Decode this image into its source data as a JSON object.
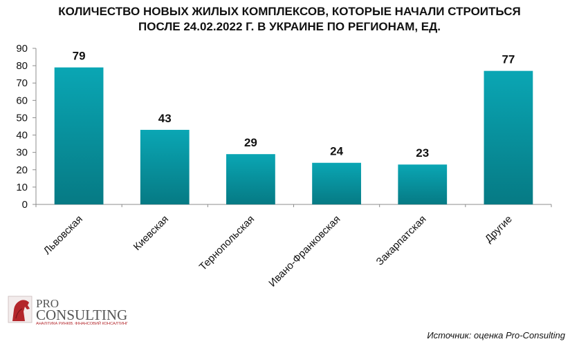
{
  "chart_data": {
    "type": "bar",
    "title_lines": [
      "КОЛИЧЕСТВО НОВЫХ ЖИЛЫХ КОМПЛЕКСОВ, КОТОРЫЕ НАЧАЛИ СТРОИТЬСЯ",
      "ПОСЛЕ 24.02.2022 Г. В УКРАИНЕ ПО РЕГИОНАМ, ЕД."
    ],
    "categories": [
      "Львовская",
      "Киевская",
      "Тернопольская",
      "Ивано-Франковская",
      "Закарпатская",
      "Другие"
    ],
    "values": [
      79,
      43,
      29,
      24,
      23,
      77
    ],
    "ylim": [
      0,
      90
    ],
    "yticks": [
      0,
      10,
      20,
      30,
      40,
      50,
      60,
      70,
      80,
      90
    ],
    "grid": false,
    "data_labels": true,
    "bar_color_top": "#0aa6b4",
    "bar_color_bottom": "#067a84"
  },
  "logo": {
    "line1": "PRO",
    "line2": "CONSULTING",
    "tagline": "АНАЛІТИКА РИНКІВ. ФІНАНСОВИЙ КОНСАЛТИНГ",
    "accent_color": "#b3262b",
    "text_color": "#555555"
  },
  "source": "Источник: оценка Pro-Consulting"
}
